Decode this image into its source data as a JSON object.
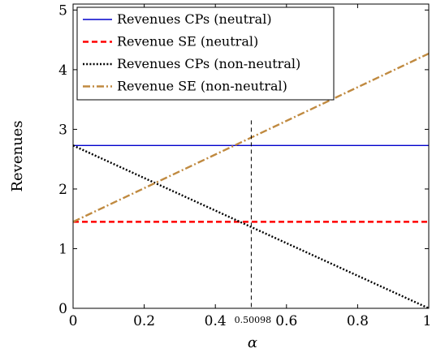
{
  "chart_data": {
    "type": "line",
    "title": "",
    "xlabel": "α",
    "ylabel": "Revenues",
    "xlim": [
      0,
      1
    ],
    "ylim": [
      0,
      5.1
    ],
    "xticks": [
      0,
      0.2,
      0.4,
      0.6,
      0.8,
      1
    ],
    "xtick_labels": [
      "0",
      "0.2",
      "0.4",
      "0.6",
      "0.8",
      "1"
    ],
    "yticks": [
      0,
      1,
      2,
      3,
      4,
      5
    ],
    "ytick_labels": [
      "0",
      "1",
      "2",
      "3",
      "4",
      "5"
    ],
    "grid": false,
    "legend_position": "top-left",
    "series": [
      {
        "name": "Revenues CPs (neutral)",
        "color": "#0000cc",
        "dash": "solid",
        "x": [
          0,
          1
        ],
        "y": [
          2.73,
          2.73
        ]
      },
      {
        "name": "Revenue SE (neutral)",
        "color": "#ff0000",
        "dash": "dashed",
        "x": [
          0,
          1
        ],
        "y": [
          1.45,
          1.45
        ]
      },
      {
        "name": "Revenues CPs (non-neutral)",
        "color": "#000000",
        "dash": "dotted",
        "x": [
          0,
          1
        ],
        "y": [
          2.73,
          0
        ]
      },
      {
        "name": "Revenue SE (non-neutral)",
        "color": "#c08a40",
        "dash": "dashdot",
        "x": [
          0,
          1
        ],
        "y": [
          1.45,
          4.27
        ]
      }
    ],
    "annotations": [
      {
        "type": "vline",
        "x": 0.50098,
        "label": "0.50098",
        "style": "dashed",
        "color": "#000000"
      }
    ]
  }
}
